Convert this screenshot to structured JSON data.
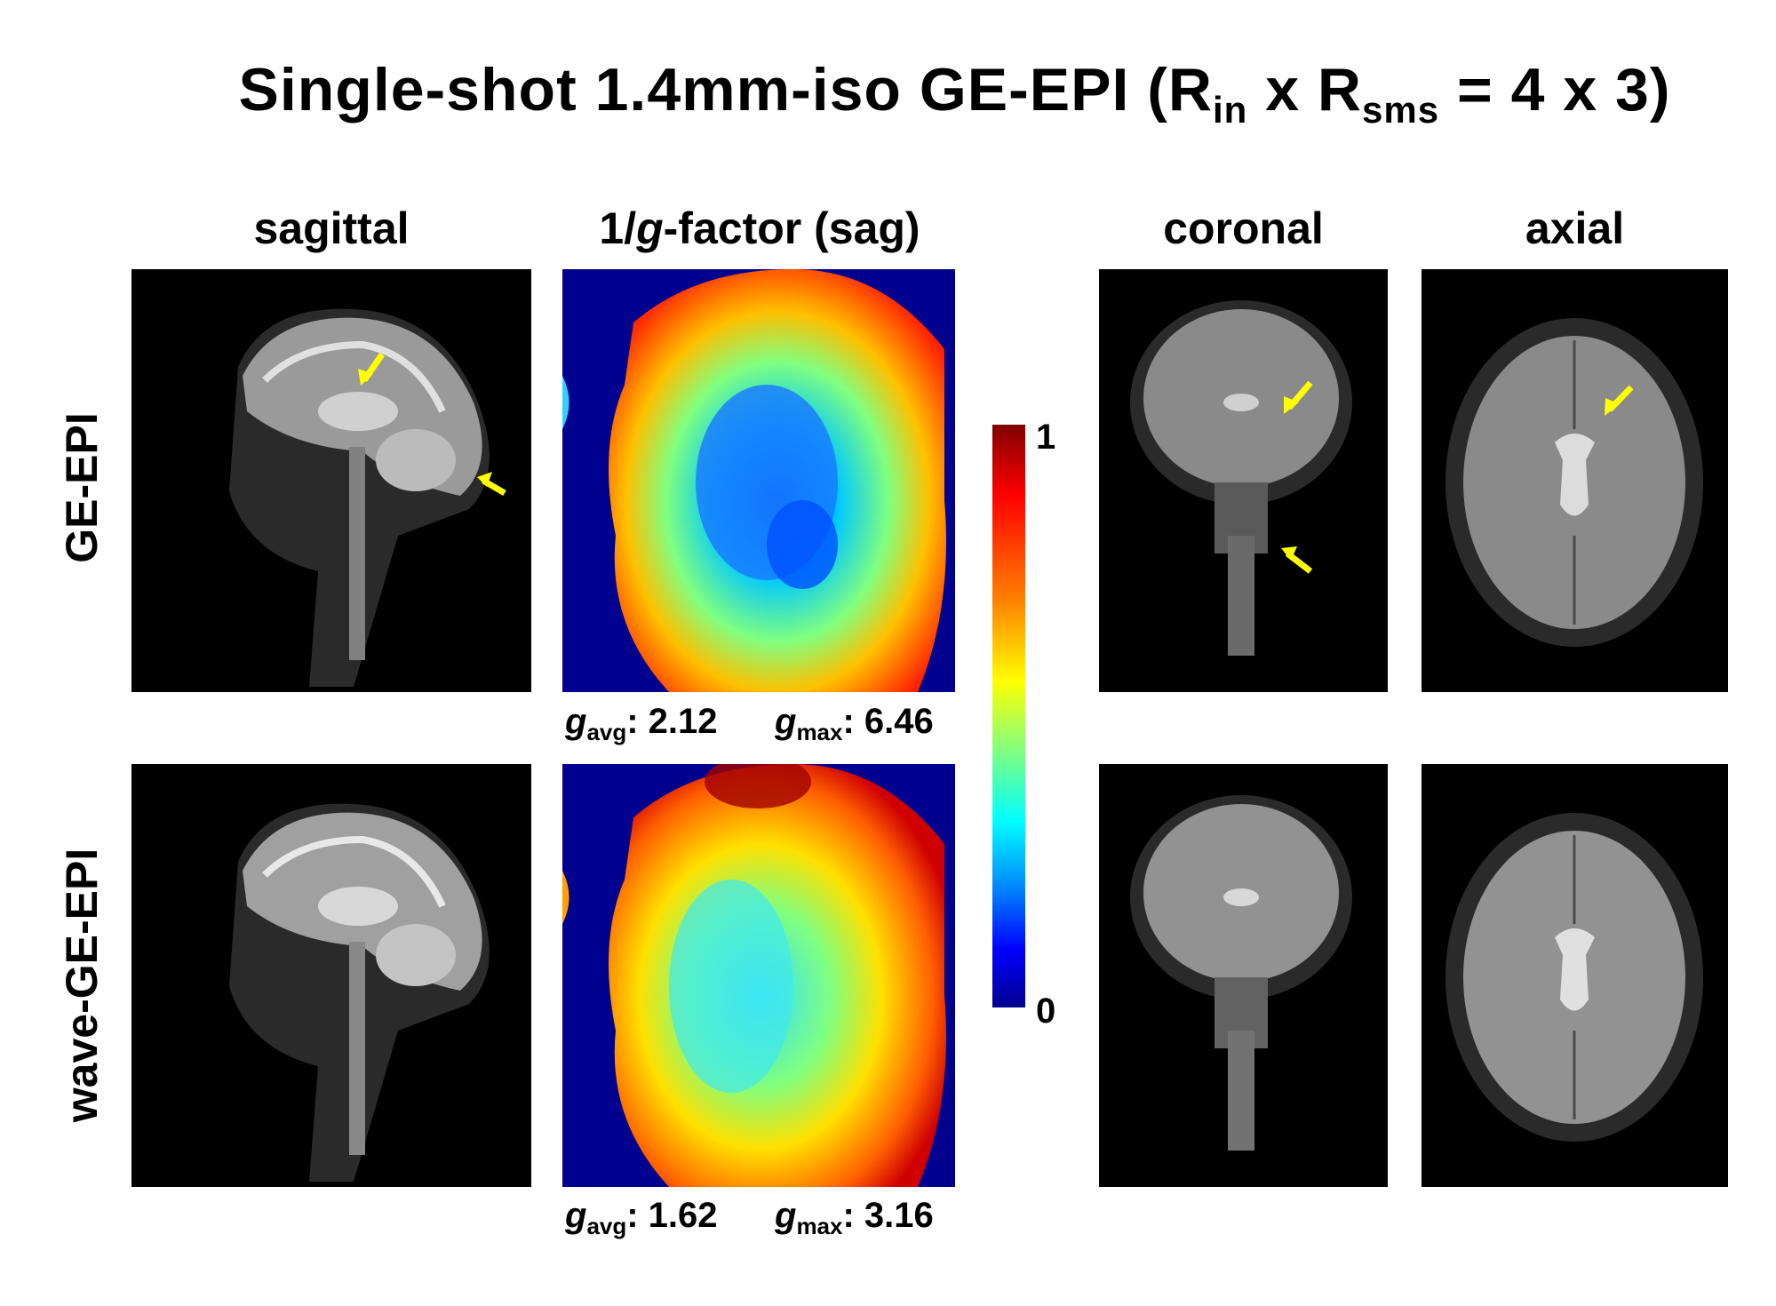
{
  "title": {
    "prefix": "Single-shot  1.4mm-iso GE-EPI (R",
    "sub1": "in",
    "mid": " x R",
    "sub2": "sms",
    "suffix": " = 4 x 3)"
  },
  "columns": {
    "sagittal": "sagittal",
    "gfactor_prefix": "1/",
    "gfactor_italic": "g",
    "gfactor_suffix": "-factor (sag)",
    "coronal": "coronal",
    "axial": "axial"
  },
  "rows": {
    "top": "GE-EPI",
    "bottom": "wave-GE-EPI"
  },
  "stats": {
    "g_letter": "g",
    "avg_sub": "avg",
    "max_sub": "max",
    "ge_epi_avg": ": 2.12",
    "ge_epi_max": ": 6.46",
    "wave_avg": ": 1.62",
    "wave_max": ": 3.16"
  },
  "colorbar": {
    "max_label": "1",
    "min_label": "0"
  },
  "colors": {
    "arrow": "#ffff00",
    "background": "#ffffff",
    "image_bg": "#000000"
  }
}
